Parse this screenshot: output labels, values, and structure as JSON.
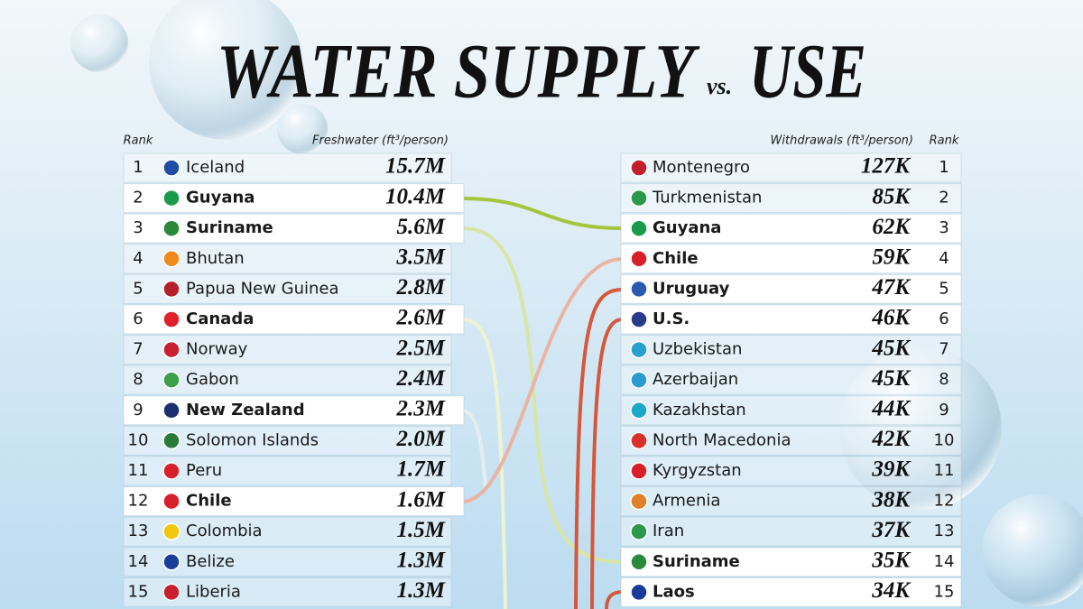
{
  "title": {
    "main": "WATER SUPPLY",
    "middle": "vs.",
    "end": "USE"
  },
  "supply": {
    "rank_header": "Rank",
    "value_header": "Freshwater (ft³/person)",
    "rows": [
      {
        "rank": 1,
        "country": "Iceland",
        "value": "15.7M",
        "highlight": false,
        "flag": "#1f4fa3"
      },
      {
        "rank": 2,
        "country": "Guyana",
        "value": "10.4M",
        "highlight": true,
        "flag": "#1a9a4a"
      },
      {
        "rank": 3,
        "country": "Suriname",
        "value": "5.6M",
        "highlight": true,
        "flag": "#2a8a3a"
      },
      {
        "rank": 4,
        "country": "Bhutan",
        "value": "3.5M",
        "highlight": false,
        "flag": "#f08a1c"
      },
      {
        "rank": 5,
        "country": "Papua New Guinea",
        "value": "2.8M",
        "highlight": false,
        "flag": "#b3202a"
      },
      {
        "rank": 6,
        "country": "Canada",
        "value": "2.6M",
        "highlight": true,
        "flag": "#e0202a"
      },
      {
        "rank": 7,
        "country": "Norway",
        "value": "2.5M",
        "highlight": false,
        "flag": "#c8202e"
      },
      {
        "rank": 8,
        "country": "Gabon",
        "value": "2.4M",
        "highlight": false,
        "flag": "#3aa04a"
      },
      {
        "rank": 9,
        "country": "New Zealand",
        "value": "2.3M",
        "highlight": true,
        "flag": "#1c2e6e"
      },
      {
        "rank": 10,
        "country": "Solomon Islands",
        "value": "2.0M",
        "highlight": false,
        "flag": "#2a7a3a"
      },
      {
        "rank": 11,
        "country": "Peru",
        "value": "1.7M",
        "highlight": false,
        "flag": "#d8202a"
      },
      {
        "rank": 12,
        "country": "Chile",
        "value": "1.6M",
        "highlight": true,
        "flag": "#d8202a"
      },
      {
        "rank": 13,
        "country": "Colombia",
        "value": "1.5M",
        "highlight": false,
        "flag": "#f2c80f"
      },
      {
        "rank": 14,
        "country": "Belize",
        "value": "1.3M",
        "highlight": false,
        "flag": "#1a3f9a"
      },
      {
        "rank": 15,
        "country": "Liberia",
        "value": "1.3M",
        "highlight": false,
        "flag": "#c8202e"
      }
    ]
  },
  "use": {
    "rank_header": "Rank",
    "value_header": "Withdrawals (ft³/person)",
    "rows": [
      {
        "rank": 1,
        "country": "Montenegro",
        "value": "127K",
        "highlight": false,
        "flag": "#c0202a"
      },
      {
        "rank": 2,
        "country": "Turkmenistan",
        "value": "85K",
        "highlight": false,
        "flag": "#2a9a4a"
      },
      {
        "rank": 3,
        "country": "Guyana",
        "value": "62K",
        "highlight": true,
        "flag": "#1a9a4a"
      },
      {
        "rank": 4,
        "country": "Chile",
        "value": "59K",
        "highlight": true,
        "flag": "#d8202a"
      },
      {
        "rank": 5,
        "country": "Uruguay",
        "value": "47K",
        "highlight": true,
        "flag": "#2a5ab0"
      },
      {
        "rank": 6,
        "country": "U.S.",
        "value": "46K",
        "highlight": true,
        "flag": "#2a3a8a"
      },
      {
        "rank": 7,
        "country": "Uzbekistan",
        "value": "45K",
        "highlight": false,
        "flag": "#2aa0d0"
      },
      {
        "rank": 8,
        "country": "Azerbaijan",
        "value": "45K",
        "highlight": false,
        "flag": "#2a9ad0"
      },
      {
        "rank": 9,
        "country": "Kazakhstan",
        "value": "44K",
        "highlight": false,
        "flag": "#1aa8c8"
      },
      {
        "rank": 10,
        "country": "North Macedonia",
        "value": "42K",
        "highlight": false,
        "flag": "#d8302a"
      },
      {
        "rank": 11,
        "country": "Kyrgyzstan",
        "value": "39K",
        "highlight": false,
        "flag": "#d8202a"
      },
      {
        "rank": 12,
        "country": "Armenia",
        "value": "38K",
        "highlight": false,
        "flag": "#e0802a"
      },
      {
        "rank": 13,
        "country": "Iran",
        "value": "37K",
        "highlight": false,
        "flag": "#2a9a4a"
      },
      {
        "rank": 14,
        "country": "Suriname",
        "value": "35K",
        "highlight": true,
        "flag": "#2a8a3a"
      },
      {
        "rank": 15,
        "country": "Laos",
        "value": "34K",
        "highlight": true,
        "flag": "#1a3a9a"
      }
    ]
  }
}
